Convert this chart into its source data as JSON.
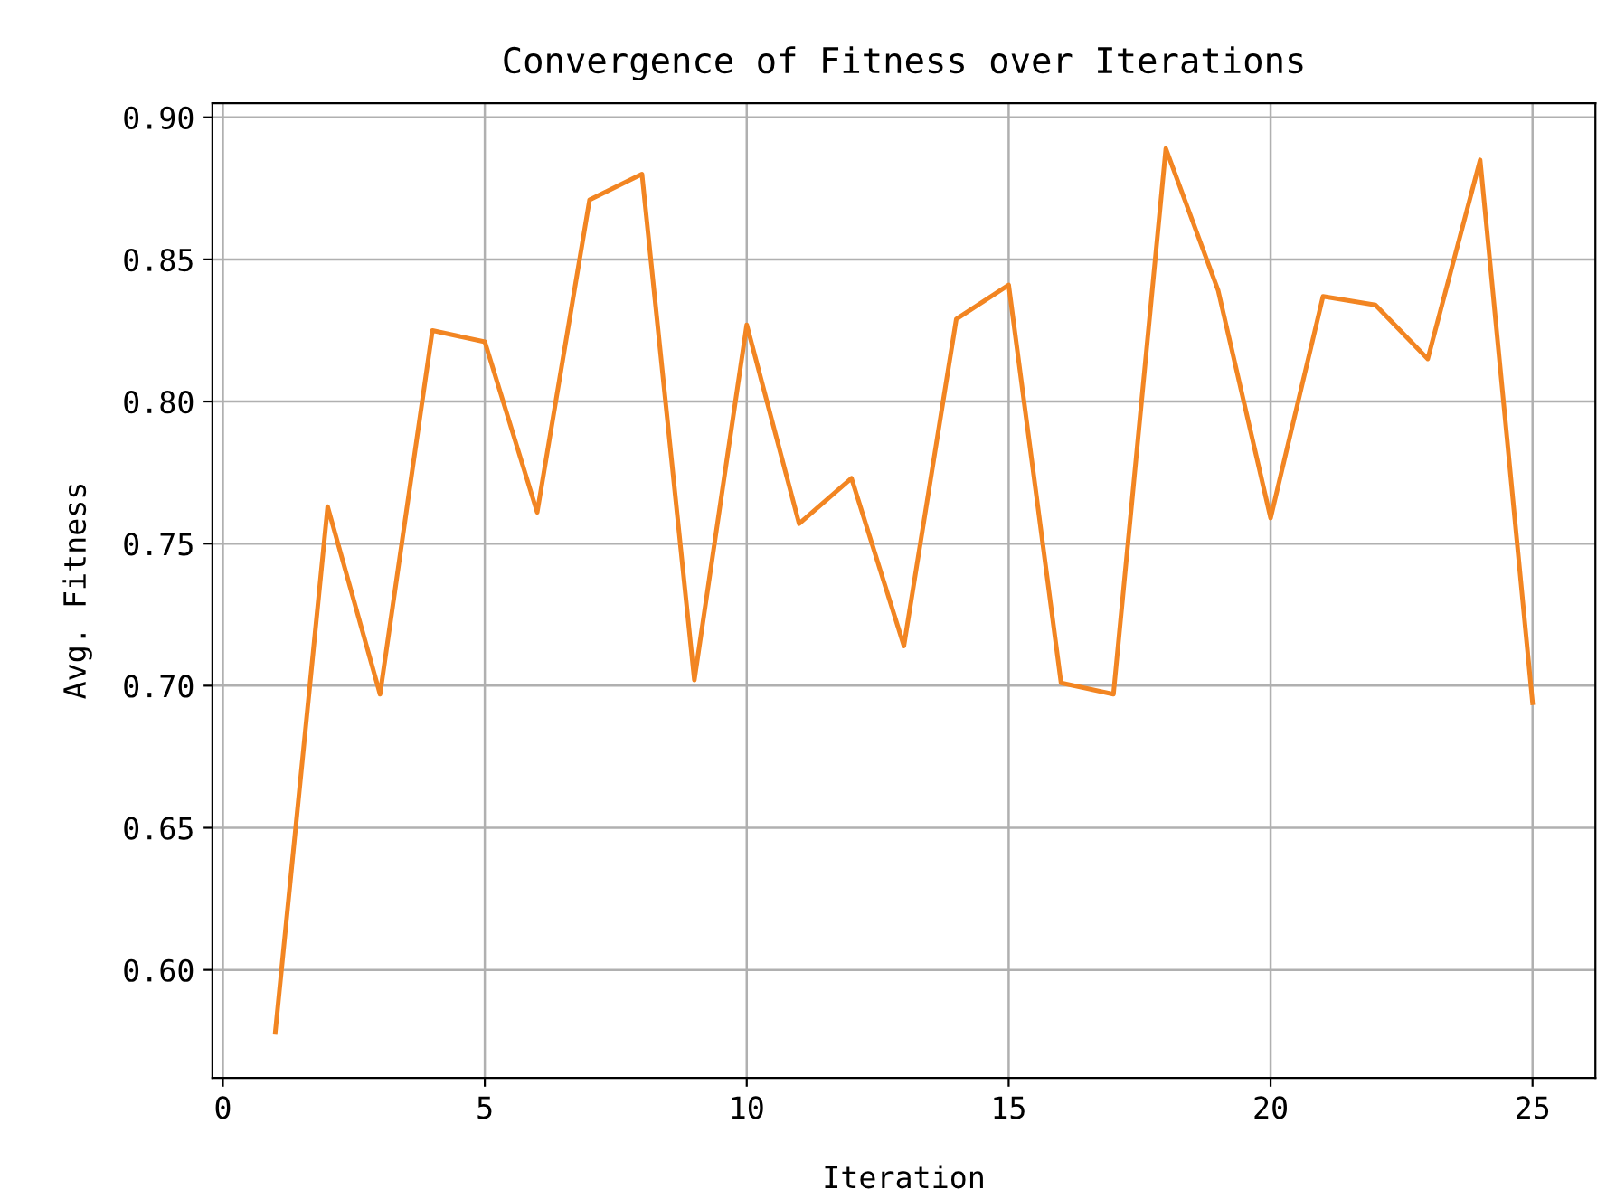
{
  "chart_data": {
    "type": "line",
    "title": "Convergence of Fitness over Iterations",
    "xlabel": "Iteration",
    "ylabel": "Avg. Fitness",
    "x": [
      1,
      2,
      3,
      4,
      5,
      6,
      7,
      8,
      9,
      10,
      11,
      12,
      13,
      14,
      15,
      16,
      17,
      18,
      19,
      20,
      21,
      22,
      23,
      24,
      25
    ],
    "series": [
      {
        "color": "#f28522",
        "values": [
          0.578,
          0.763,
          0.697,
          0.825,
          0.821,
          0.761,
          0.871,
          0.88,
          0.702,
          0.827,
          0.757,
          0.773,
          0.714,
          0.829,
          0.841,
          0.701,
          0.697,
          0.889,
          0.839,
          0.759,
          0.837,
          0.834,
          0.815,
          0.885,
          0.694
        ]
      }
    ],
    "xlim": [
      -0.2,
      26.2
    ],
    "ylim": [
      0.562,
      0.905
    ],
    "xticks": [
      0,
      5,
      10,
      15,
      20,
      25
    ],
    "yticks": [
      {
        "value": 0.6,
        "label": "0.60"
      },
      {
        "value": 0.65,
        "label": "0.65"
      },
      {
        "value": 0.7,
        "label": "0.70"
      },
      {
        "value": 0.75,
        "label": "0.75"
      },
      {
        "value": 0.8,
        "label": "0.80"
      },
      {
        "value": 0.85,
        "label": "0.85"
      },
      {
        "value": 0.9,
        "label": "0.90"
      }
    ],
    "grid": true
  }
}
